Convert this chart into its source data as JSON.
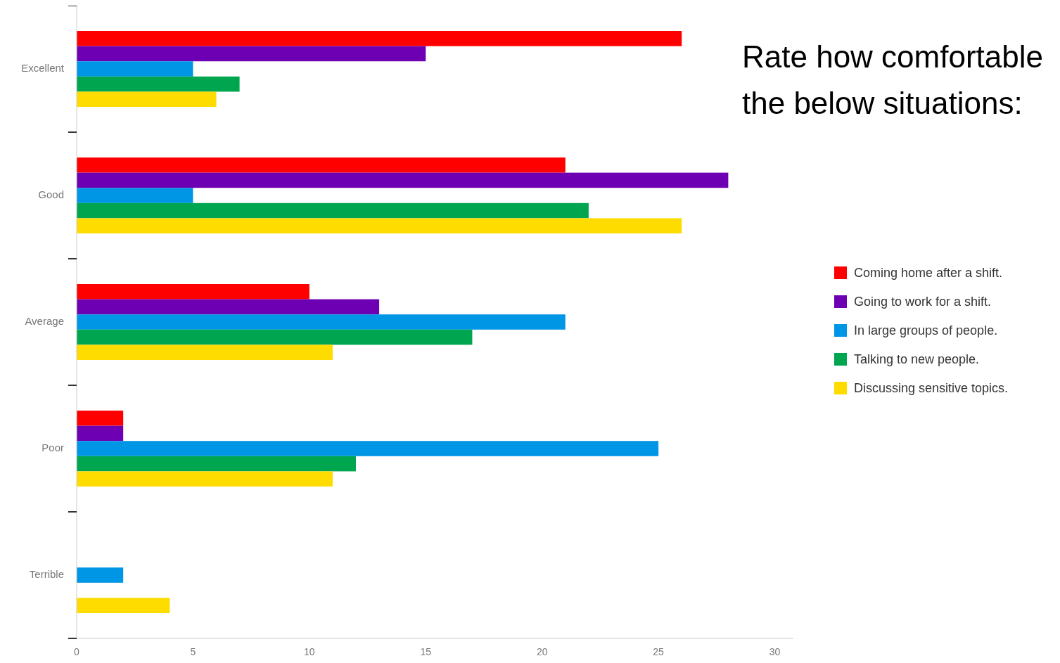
{
  "chart_data": {
    "type": "bar",
    "orientation": "horizontal",
    "title": "Rate how comfortable\nthe below situations:",
    "categories": [
      "Excellent",
      "Good",
      "Average",
      "Poor",
      "Terrible"
    ],
    "series": [
      {
        "name": "Coming home after a shift.",
        "color": "#ff0000",
        "values": [
          26,
          21,
          10,
          2,
          0
        ]
      },
      {
        "name": "Going to work for a shift.",
        "color": "#6e00b4",
        "values": [
          15,
          28,
          13,
          2,
          0
        ]
      },
      {
        "name": "In large groups of people.",
        "color": "#0096e6",
        "values": [
          5,
          5,
          21,
          25,
          2
        ]
      },
      {
        "name": "Talking to new people.",
        "color": "#00a550",
        "values": [
          7,
          22,
          17,
          12,
          0
        ]
      },
      {
        "name": "Discussing sensitive topics.",
        "color": "#ffdc00",
        "values": [
          6,
          26,
          11,
          11,
          4
        ]
      }
    ],
    "xlim": [
      0,
      30.8
    ],
    "xticks": [
      0,
      5,
      10,
      15,
      20,
      25,
      30
    ],
    "grid": false,
    "legend": "right"
  }
}
